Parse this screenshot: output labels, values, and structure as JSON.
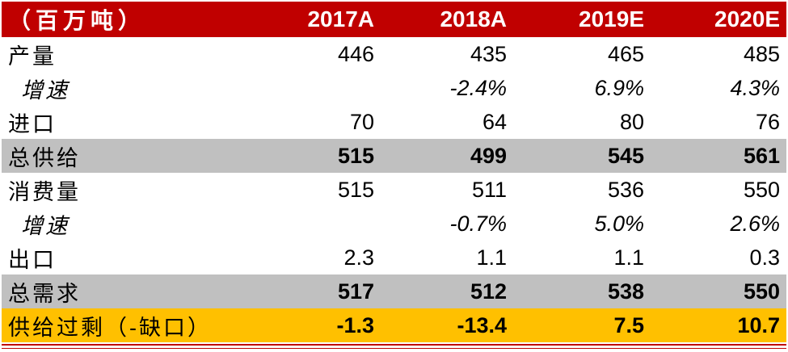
{
  "table": {
    "header": {
      "label": "（百万吨）",
      "columns": [
        "2017A",
        "2018A",
        "2019E",
        "2020E"
      ]
    },
    "rows": [
      {
        "label": "产量",
        "values": [
          "446",
          "435",
          "465",
          "485"
        ]
      },
      {
        "label": "增速",
        "values": [
          "",
          "-2.4%",
          "6.9%",
          "4.3%"
        ]
      },
      {
        "label": "进口",
        "values": [
          "70",
          "64",
          "80",
          "76"
        ]
      },
      {
        "label": "总供给",
        "values": [
          "515",
          "499",
          "545",
          "561"
        ]
      },
      {
        "label": "消费量",
        "values": [
          "515",
          "511",
          "536",
          "550"
        ]
      },
      {
        "label": "增速",
        "values": [
          "",
          "-0.7%",
          "5.0%",
          "2.6%"
        ]
      },
      {
        "label": "出口",
        "values": [
          "2.3",
          "1.1",
          "1.1",
          "0.3"
        ]
      },
      {
        "label": "总需求",
        "values": [
          "517",
          "512",
          "538",
          "550"
        ]
      },
      {
        "label": "供给过剩（-缺口）",
        "values": [
          "-1.3",
          "-13.4",
          "7.5",
          "10.7"
        ]
      }
    ]
  },
  "colors": {
    "header_bg": "#c00000",
    "header_text": "#ffffff",
    "total_bg": "#c0c0c0",
    "balance_bg": "#ffc000"
  }
}
